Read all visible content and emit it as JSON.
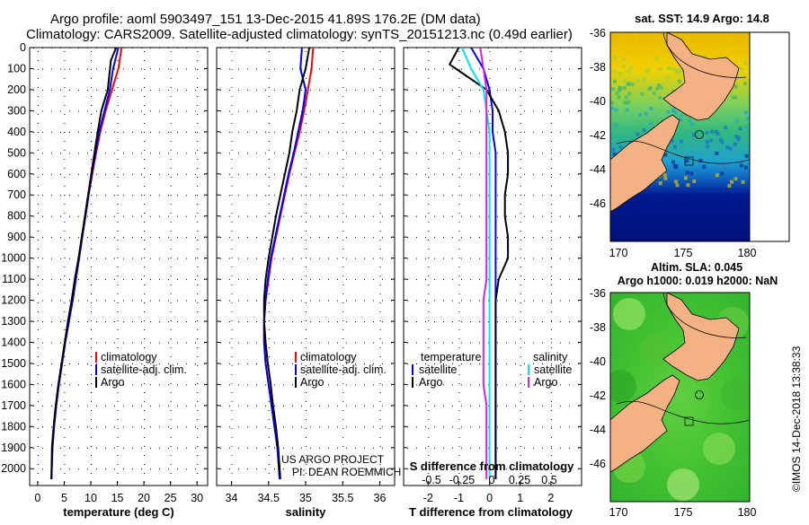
{
  "header": {
    "title_line1": "Argo profile: aoml 5903497_151 13-Dec-2015 41.89S 176.2E (DM data)",
    "title_line2": "Climatology: CARS2009. Satellite-adjusted climatology: synTS_20151213.nc (0.49d earlier)"
  },
  "colors": {
    "climatology": "#ff0000",
    "satellite": "#0000ff",
    "argo": "#000000",
    "sal_satellite": "#00e5ee",
    "sal_argo": "#e020e0",
    "land": "#f4b183"
  },
  "chart_data": [
    {
      "id": "temperature",
      "type": "line",
      "xlabel": "temperature (deg C)",
      "ylabel": "",
      "xlim": [
        -1.5,
        32
      ],
      "ylim": [
        2080,
        0
      ],
      "x_ticks": [
        0,
        5,
        10,
        15,
        20,
        25,
        30
      ],
      "y_ticks": [
        0,
        100,
        200,
        300,
        400,
        500,
        600,
        700,
        800,
        900,
        1000,
        1100,
        1200,
        1300,
        1400,
        1500,
        1600,
        1700,
        1800,
        1900,
        2000
      ],
      "legend": [
        "climatology",
        "satellite-adj. clim.",
        "Argo"
      ],
      "series": [
        {
          "name": "climatology",
          "color": "#ff0000",
          "x": [
            15.8,
            15.2,
            14.0,
            12.8,
            11.8,
            11.0,
            10.3,
            9.6,
            9.0,
            8.4,
            7.8,
            7.2,
            6.6,
            5.9,
            5.2,
            4.6,
            4.0,
            3.5,
            3.1,
            2.8,
            2.6
          ],
          "y": [
            0,
            100,
            200,
            300,
            400,
            500,
            600,
            700,
            800,
            900,
            1000,
            1100,
            1200,
            1300,
            1400,
            1500,
            1600,
            1700,
            1800,
            1900,
            2050
          ]
        },
        {
          "name": "satellite-adj. clim.",
          "color": "#0000ff",
          "x": [
            15.2,
            14.2,
            13.6,
            12.6,
            11.6,
            10.9,
            10.2,
            9.6,
            9.0,
            8.4,
            7.8,
            7.2,
            6.6,
            5.9,
            5.2,
            4.6,
            4.0,
            3.5,
            3.1,
            2.8,
            2.6
          ],
          "y": [
            0,
            100,
            200,
            300,
            400,
            500,
            600,
            700,
            800,
            900,
            1000,
            1100,
            1200,
            1300,
            1400,
            1500,
            1600,
            1700,
            1800,
            1900,
            2050
          ]
        },
        {
          "name": "Argo",
          "color": "#000000",
          "x": [
            14.8,
            13.8,
            13.2,
            12.0,
            11.3,
            10.7,
            10.1,
            9.5,
            8.9,
            8.3,
            7.7,
            7.0,
            6.4,
            5.7,
            5.1,
            4.5,
            3.9,
            3.4,
            3.0,
            2.7,
            2.6
          ],
          "y": [
            0,
            60,
            200,
            300,
            400,
            500,
            600,
            700,
            800,
            900,
            1000,
            1100,
            1200,
            1300,
            1400,
            1500,
            1600,
            1700,
            1800,
            1900,
            2050
          ]
        }
      ]
    },
    {
      "id": "salinity",
      "type": "line",
      "xlabel": "salinity",
      "ylabel": "",
      "xlim": [
        33.8,
        36.2
      ],
      "ylim": [
        2080,
        0
      ],
      "x_ticks": [
        34,
        34.5,
        35,
        35.5,
        36
      ],
      "legend": [
        "climatology",
        "satellite-adj. clim.",
        "Argo"
      ],
      "annotation": [
        "US ARGO PROJECT",
        "PI: DEAN ROEMMICH"
      ],
      "series": [
        {
          "name": "climatology",
          "color": "#ff0000",
          "x": [
            35.1,
            35.08,
            35.03,
            34.98,
            34.92,
            34.85,
            34.78,
            34.72,
            34.66,
            34.6,
            34.54,
            34.5,
            34.46,
            34.44,
            34.44,
            34.46,
            34.5,
            34.54,
            34.58,
            34.62,
            34.65
          ],
          "y": [
            0,
            100,
            200,
            300,
            400,
            500,
            600,
            700,
            800,
            900,
            1000,
            1100,
            1200,
            1300,
            1400,
            1500,
            1600,
            1700,
            1800,
            1900,
            2050
          ]
        },
        {
          "name": "satellite-adj. clim.",
          "color": "#0000ff",
          "x": [
            34.95,
            34.93,
            35.0,
            34.96,
            34.9,
            34.84,
            34.77,
            34.71,
            34.65,
            34.59,
            34.53,
            34.49,
            34.46,
            34.44,
            34.44,
            34.46,
            34.5,
            34.54,
            34.58,
            34.62,
            34.65
          ],
          "y": [
            0,
            100,
            200,
            300,
            400,
            500,
            600,
            700,
            800,
            900,
            1000,
            1100,
            1200,
            1300,
            1400,
            1500,
            1600,
            1700,
            1800,
            1900,
            2050
          ]
        },
        {
          "name": "Argo",
          "color": "#000000",
          "x": [
            35.05,
            35.0,
            34.92,
            34.88,
            34.82,
            34.78,
            34.72,
            34.66,
            34.6,
            34.55,
            34.5,
            34.46,
            34.44,
            34.44,
            34.46,
            34.49,
            34.53,
            34.56,
            34.6,
            34.63,
            34.66
          ],
          "y": [
            0,
            100,
            200,
            300,
            400,
            500,
            600,
            700,
            800,
            900,
            1000,
            1100,
            1200,
            1300,
            1400,
            1500,
            1600,
            1700,
            1800,
            1900,
            2050
          ]
        }
      ]
    },
    {
      "id": "difference",
      "type": "line",
      "xlabel": "T difference from climatology",
      "ylabel": "",
      "top_label": "S difference from climatology",
      "xlim": [
        -2.8,
        3.0
      ],
      "ylim": [
        2080,
        0
      ],
      "x_ticks": [
        -2,
        -1,
        0,
        1,
        2
      ],
      "s_ticks_text": [
        "-0.5",
        "-0.25",
        "0",
        "0.25",
        "0.5"
      ],
      "legend_temperature": {
        "header": "temperature",
        "items": [
          "satellite",
          "Argo"
        ]
      },
      "legend_salinity": {
        "header": "salinity",
        "items": [
          "satellite",
          "Argo"
        ]
      },
      "series": [
        {
          "name": "temperature satellite",
          "color": "#0000ff",
          "x": [
            -0.6,
            -0.2,
            0.0,
            0.1,
            0.1,
            0.2,
            0.2,
            0.2,
            0.2,
            0.2,
            0.2,
            0.2,
            0.2,
            0.2,
            0.2,
            0.2,
            0.2,
            0.2,
            0.2,
            0.2,
            0.2
          ],
          "y": [
            0,
            100,
            200,
            300,
            400,
            500,
            600,
            700,
            800,
            900,
            1000,
            1100,
            1200,
            1300,
            1400,
            1500,
            1600,
            1700,
            1800,
            1900,
            2050
          ]
        },
        {
          "name": "temperature Argo",
          "color": "#000000",
          "x": [
            -1.0,
            -1.3,
            -0.1,
            0.3,
            0.5,
            0.6,
            0.6,
            0.5,
            0.5,
            0.6,
            0.6,
            0.3,
            0.2,
            0.2,
            0.2,
            0.2,
            0.2,
            0.2,
            0.2,
            0.2,
            0.2
          ],
          "y": [
            0,
            80,
            200,
            300,
            400,
            500,
            600,
            700,
            800,
            900,
            1000,
            1100,
            1200,
            1300,
            1400,
            1500,
            1600,
            1700,
            1800,
            1900,
            2050
          ]
        },
        {
          "name": "salinity satellite",
          "color": "#00e5ee",
          "x": [
            -0.9,
            -0.6,
            -0.2,
            -0.1,
            0.0,
            0.0,
            0.0,
            0.0,
            0.0,
            0.0,
            0.0,
            0.0,
            0.0,
            0.0,
            0.0,
            0.0,
            0.0,
            0.0,
            0.0,
            0.0,
            0.0
          ],
          "y": [
            0,
            100,
            200,
            300,
            400,
            500,
            600,
            700,
            800,
            900,
            1000,
            1100,
            1200,
            1300,
            1400,
            1500,
            1600,
            1700,
            1800,
            1900,
            2050
          ]
        },
        {
          "name": "salinity Argo",
          "color": "#e020e0",
          "x": [
            -0.3,
            -0.2,
            -0.1,
            -0.1,
            -0.1,
            -0.1,
            -0.1,
            -0.1,
            -0.1,
            -0.1,
            -0.1,
            -0.1,
            -0.2,
            -0.2,
            -0.2,
            -0.2,
            -0.2,
            -0.1,
            -0.1,
            -0.1,
            -0.1
          ],
          "y": [
            0,
            100,
            200,
            300,
            400,
            500,
            600,
            700,
            800,
            900,
            1000,
            1100,
            1200,
            1300,
            1400,
            1500,
            1600,
            1700,
            1800,
            1900,
            2050
          ]
        }
      ]
    }
  ],
  "maps": [
    {
      "id": "sst",
      "title": "sat. SST: 14.9 Argo: 14.8",
      "lat_ticks": [
        "-36",
        "-38",
        "-40",
        "-42",
        "-44",
        "-46"
      ],
      "lon_ticks": [
        "170",
        "175",
        "180"
      ]
    },
    {
      "id": "sla",
      "title_line1": "Altim. SLA: 0.045",
      "title_line2": "Argo h1000: 0.019 h2000: NaN",
      "lat_ticks": [
        "-36",
        "-38",
        "-40",
        "-42",
        "-44",
        "-46"
      ],
      "lon_ticks": [
        "170",
        "175",
        "180"
      ]
    }
  ],
  "credit": "©IMOS 14-Dec-2018 13:38:33"
}
